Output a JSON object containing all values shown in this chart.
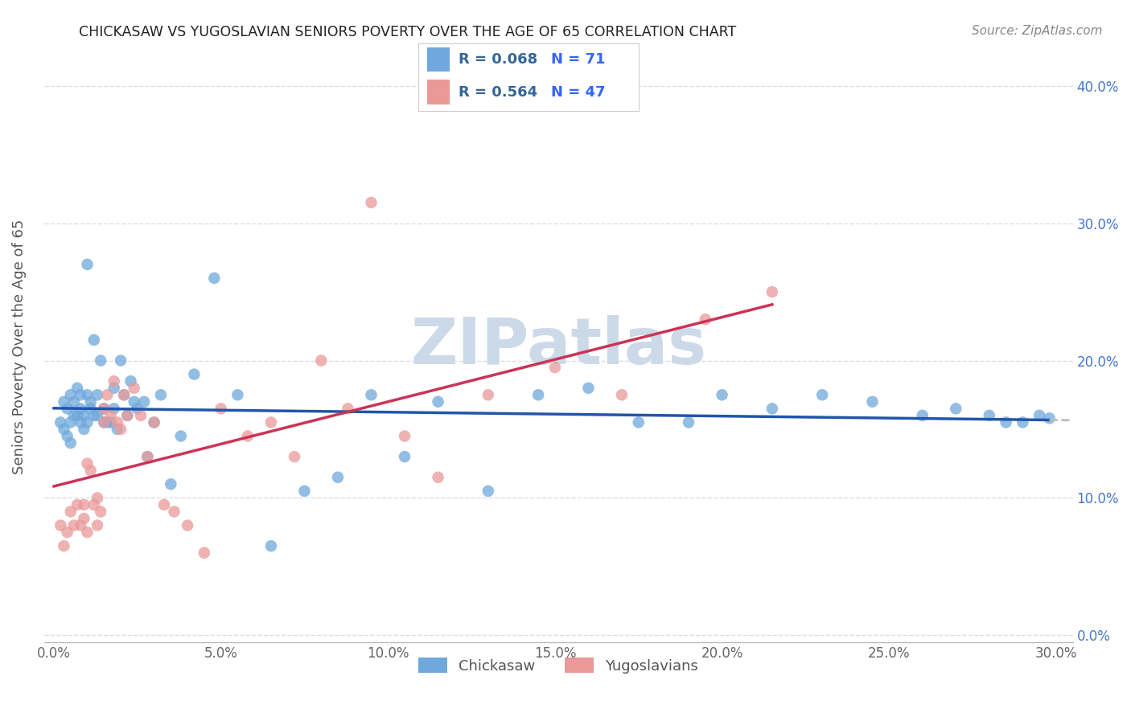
{
  "title": "CHICKASAW VS YUGOSLAVIAN SENIORS POVERTY OVER THE AGE OF 65 CORRELATION CHART",
  "source": "Source: ZipAtlas.com",
  "ylabel": "Seniors Poverty Over the Age of 65",
  "xlabel_ticks": [
    0.0,
    0.05,
    0.1,
    0.15,
    0.2,
    0.25,
    0.3
  ],
  "ylabel_ticks": [
    0.0,
    0.1,
    0.2,
    0.3,
    0.4
  ],
  "xlim": [
    -0.003,
    0.305
  ],
  "ylim": [
    -0.005,
    0.425
  ],
  "chickasaw_R": "0.068",
  "chickasaw_N": "71",
  "yugoslav_R": "0.564",
  "yugoslav_N": "47",
  "chickasaw_color": "#6fa8dc",
  "yugoslav_color": "#ea9999",
  "trend_chickasaw_color": "#2255aa",
  "trend_yugoslav_color": "#cc3355",
  "trend_extra_color": "#bbbbbb",
  "background_color": "#ffffff",
  "grid_color": "#dddddd",
  "watermark_color": "#ccd9e8",
  "title_color": "#222222",
  "legend_R_color": "#336699",
  "legend_N_color": "#3366ff",
  "chickasaw_x": [
    0.002,
    0.003,
    0.003,
    0.004,
    0.004,
    0.005,
    0.005,
    0.005,
    0.006,
    0.006,
    0.007,
    0.007,
    0.008,
    0.008,
    0.008,
    0.009,
    0.009,
    0.01,
    0.01,
    0.01,
    0.011,
    0.011,
    0.012,
    0.012,
    0.013,
    0.013,
    0.014,
    0.015,
    0.015,
    0.016,
    0.017,
    0.018,
    0.018,
    0.019,
    0.02,
    0.021,
    0.022,
    0.023,
    0.024,
    0.025,
    0.027,
    0.028,
    0.03,
    0.032,
    0.035,
    0.038,
    0.042,
    0.048,
    0.055,
    0.065,
    0.075,
    0.085,
    0.095,
    0.105,
    0.115,
    0.13,
    0.145,
    0.16,
    0.175,
    0.19,
    0.2,
    0.215,
    0.23,
    0.245,
    0.26,
    0.27,
    0.28,
    0.285,
    0.29,
    0.295,
    0.298
  ],
  "chickasaw_y": [
    0.155,
    0.17,
    0.15,
    0.165,
    0.145,
    0.175,
    0.155,
    0.14,
    0.16,
    0.17,
    0.16,
    0.18,
    0.155,
    0.165,
    0.175,
    0.15,
    0.16,
    0.27,
    0.175,
    0.155,
    0.17,
    0.165,
    0.215,
    0.16,
    0.16,
    0.175,
    0.2,
    0.165,
    0.155,
    0.155,
    0.155,
    0.18,
    0.165,
    0.15,
    0.2,
    0.175,
    0.16,
    0.185,
    0.17,
    0.165,
    0.17,
    0.13,
    0.155,
    0.175,
    0.11,
    0.145,
    0.19,
    0.26,
    0.175,
    0.065,
    0.105,
    0.115,
    0.175,
    0.13,
    0.17,
    0.105,
    0.175,
    0.18,
    0.155,
    0.155,
    0.175,
    0.165,
    0.175,
    0.17,
    0.16,
    0.165,
    0.16,
    0.155,
    0.155,
    0.16,
    0.158
  ],
  "yugoslav_x": [
    0.002,
    0.003,
    0.004,
    0.005,
    0.006,
    0.007,
    0.008,
    0.009,
    0.009,
    0.01,
    0.01,
    0.011,
    0.012,
    0.013,
    0.013,
    0.014,
    0.015,
    0.015,
    0.016,
    0.017,
    0.018,
    0.019,
    0.02,
    0.021,
    0.022,
    0.024,
    0.026,
    0.028,
    0.03,
    0.033,
    0.036,
    0.04,
    0.045,
    0.05,
    0.058,
    0.065,
    0.072,
    0.08,
    0.088,
    0.095,
    0.105,
    0.115,
    0.13,
    0.15,
    0.17,
    0.195,
    0.215
  ],
  "yugoslav_y": [
    0.08,
    0.065,
    0.075,
    0.09,
    0.08,
    0.095,
    0.08,
    0.085,
    0.095,
    0.075,
    0.125,
    0.12,
    0.095,
    0.1,
    0.08,
    0.09,
    0.165,
    0.155,
    0.175,
    0.16,
    0.185,
    0.155,
    0.15,
    0.175,
    0.16,
    0.18,
    0.16,
    0.13,
    0.155,
    0.095,
    0.09,
    0.08,
    0.06,
    0.165,
    0.145,
    0.155,
    0.13,
    0.2,
    0.165,
    0.315,
    0.145,
    0.115,
    0.175,
    0.195,
    0.175,
    0.23,
    0.25
  ]
}
